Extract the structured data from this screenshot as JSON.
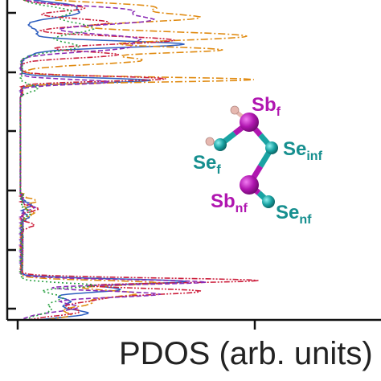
{
  "chart_data": {
    "type": "line",
    "title": "",
    "xlabel": "PDOS (arb. units)",
    "ylabel": "",
    "orientation": "vertical-energy-axis",
    "grid": false,
    "legend": "none",
    "series": [
      {
        "color": "#2f5fbf",
        "style": "solid"
      },
      {
        "color": "#e08a10",
        "style": "dash-dot"
      },
      {
        "color": "#cc1f3c",
        "style": "dash-dot-dot"
      },
      {
        "color": "#8a2bb5",
        "style": "dashed"
      },
      {
        "color": "#27a040",
        "style": "dotted"
      }
    ],
    "inset_molecule": {
      "atoms": [
        {
          "label": "Sb",
          "sub": "f",
          "color": "#b016b0",
          "label_color": "#b016b0"
        },
        {
          "label": "Se",
          "sub": "inf",
          "color": "#1aa3a3",
          "label_color": "#168f8f"
        },
        {
          "label": "Se",
          "sub": "f",
          "color": "#1aa3a3",
          "label_color": "#168f8f"
        },
        {
          "label": "Sb",
          "sub": "nf",
          "color": "#b016b0",
          "label_color": "#b016b0"
        },
        {
          "label": "Se",
          "sub": "nf",
          "color": "#1aa3a3",
          "label_color": "#168f8f"
        }
      ],
      "hydrogen_color": "#e6b8b0"
    }
  }
}
